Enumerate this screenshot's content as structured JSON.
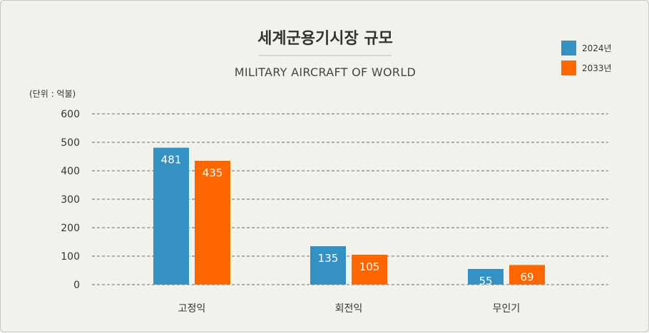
{
  "chart_data": {
    "type": "bar",
    "title": "세계군용기시장 규모",
    "subtitle": "MILITARY AIRCRAFT OF WORLD",
    "unit_label": "(단위 : 억불)",
    "categories": [
      "고정익",
      "회전익",
      "무인기"
    ],
    "series": [
      {
        "name": "2024년",
        "color": "#3591c1",
        "values": [
          481,
          135,
          55
        ]
      },
      {
        "name": "2033년",
        "color": "#ff6600",
        "values": [
          435,
          105,
          69
        ]
      }
    ],
    "ylim": [
      0,
      600
    ],
    "yticks": [
      0,
      100,
      200,
      300,
      400,
      500,
      600
    ],
    "grid": true,
    "legend_position": "top-right"
  }
}
